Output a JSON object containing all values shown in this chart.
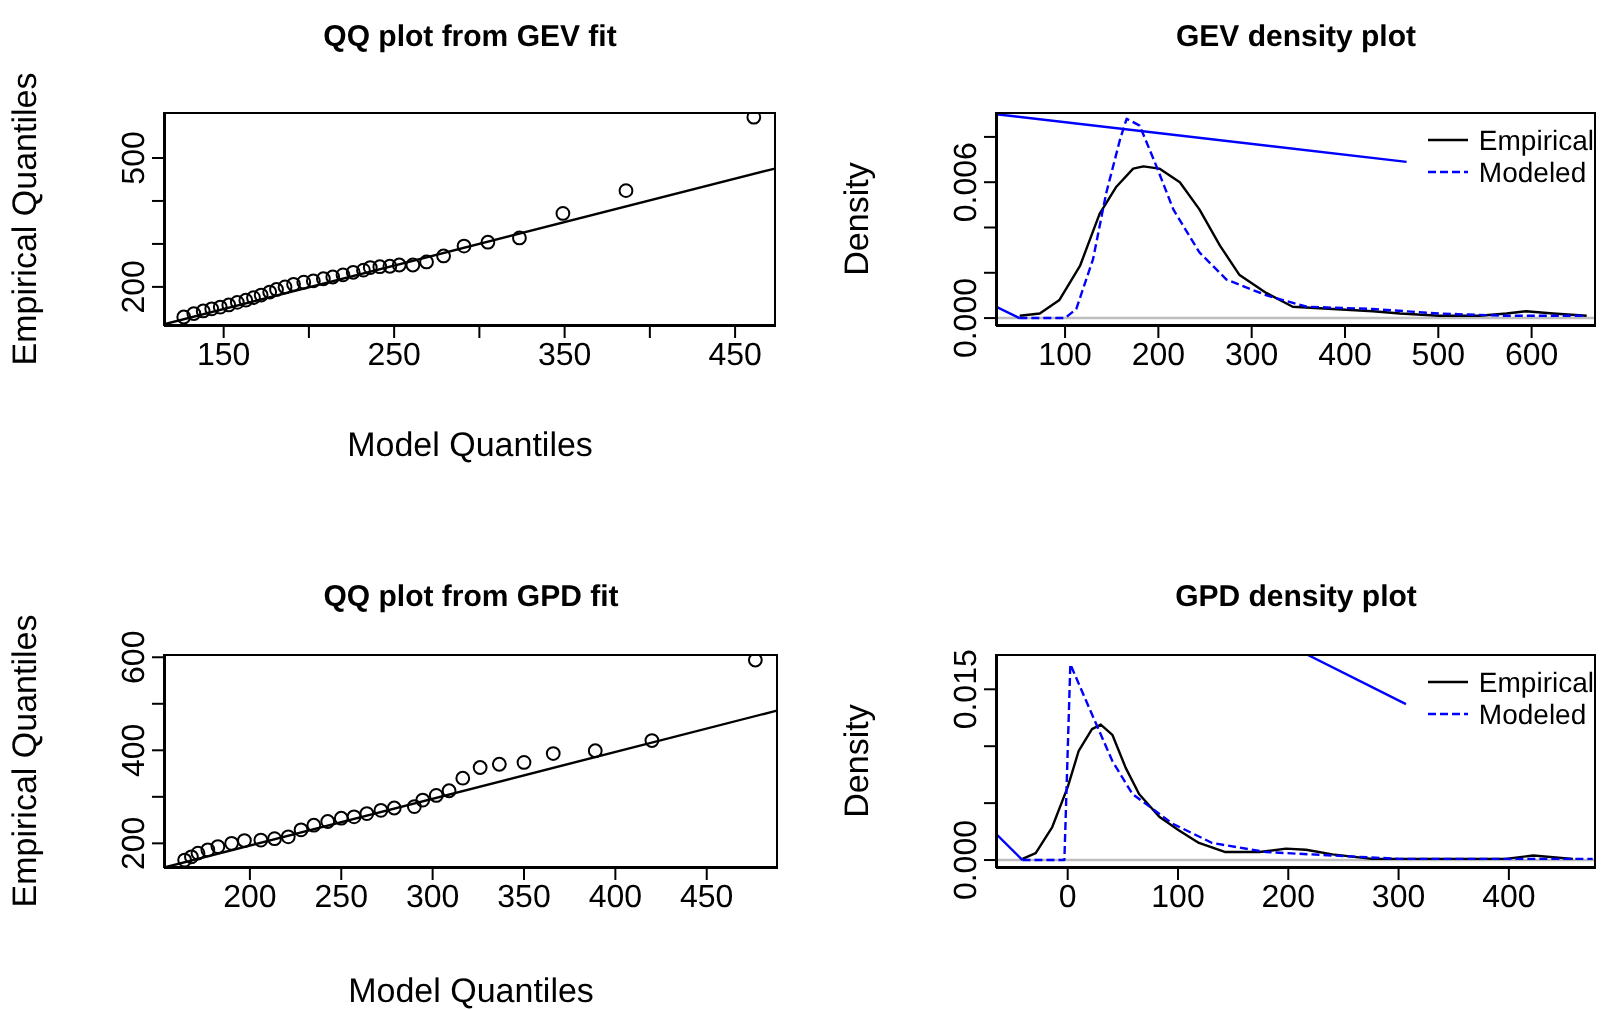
{
  "chart_data": [
    {
      "type": "scatter",
      "title": "QQ plot from GEV fit",
      "xlabel": "Model Quantiles",
      "ylabel": "Empirical Quantiles",
      "xlim": [
        115,
        474
      ],
      "ylim": [
        109,
        607
      ],
      "xticks": [
        150,
        {
          "value": 200,
          "label": null
        },
        250,
        {
          "value": 300,
          "label": null
        },
        350,
        {
          "value": 400,
          "label": null
        },
        450
      ],
      "yticks": [
        200,
        {
          "value": 300,
          "label": null
        },
        {
          "value": 400,
          "label": null
        },
        500
      ],
      "series": [
        {
          "marker": "circle",
          "color": "#000000",
          "x": [
            126.6,
            132.5,
            138,
            143,
            148,
            153,
            158,
            163,
            167.5,
            172,
            177,
            181,
            186,
            191,
            197,
            202.6,
            208.5,
            214,
            220,
            226,
            232,
            236,
            241.6,
            247.5,
            253,
            261,
            269,
            279,
            291,
            305,
            323.5,
            349,
            386,
            461
          ],
          "values": [
            130,
            138,
            144,
            149,
            153,
            158,
            164,
            169,
            175,
            181,
            188,
            194,
            200,
            206,
            211,
            214,
            219,
            223,
            228,
            234,
            239,
            245,
            247,
            248,
            251,
            251,
            258,
            272,
            295,
            304,
            314,
            371,
            424,
            595
          ]
        },
        {
          "type": "line",
          "color": "#000000",
          "x": [
            115,
            474
          ],
          "values": [
            113,
            476
          ]
        }
      ]
    },
    {
      "type": "line",
      "title": "GEV density plot",
      "ylabel": "Density",
      "legend": "top right",
      "xlim": [
        26,
        669
      ],
      "ylim": [
        -0.00035,
        0.0091
      ],
      "xticks": [
        100,
        200,
        300,
        400,
        500,
        600
      ],
      "yticks": [
        {
          "value": 0,
          "label": "0.000"
        },
        {
          "value": 0.002,
          "label": null
        },
        {
          "value": 0.004,
          "label": null
        },
        {
          "value": 0.006,
          "label": "0.006"
        },
        {
          "value": 0.008,
          "label": null
        }
      ],
      "ref_lines": [
        {
          "axis": "y",
          "value": 0,
          "color": "#bebebe"
        }
      ],
      "series": [
        {
          "name": "Empirical",
          "color": "#000000",
          "line_style": "solid",
          "x": [
            51.4,
            72.9,
            94,
            116,
            137,
            155,
            173,
            184,
            201,
            223,
            244,
            266,
            287,
            316,
            344,
            387,
            430,
            459,
            501,
            544,
            573,
            594,
            623,
            659
          ],
          "values": [
            0.0001,
            0.0002,
            0.0008,
            0.0023,
            0.0046,
            0.0058,
            0.0066,
            0.0067,
            0.0066,
            0.006,
            0.0048,
            0.0032,
            0.0019,
            0.0011,
            0.0005,
            0.0004,
            0.0003,
            0.0002,
            0.0001,
            0.0001,
            0.0002,
            0.0003,
            0.0002,
            0.0001
          ]
        },
        {
          "name": "Modeled",
          "color": "#0000ff",
          "line_style": "dashed",
          "x": [
            51,
            100,
            112,
            130,
            144,
            159,
            166,
            180,
            198,
            216,
            244,
            273,
            316,
            359,
            430,
            501,
            573,
            659
          ],
          "values": [
            0,
            0,
            0.0004,
            0.0026,
            0.0055,
            0.0079,
            0.0088,
            0.0085,
            0.0067,
            0.0048,
            0.0029,
            0.0017,
            0.001,
            0.0005,
            0.0004,
            0.0002,
            0.0001,
            0.0001
          ]
        },
        {
          "color": "#0000ff",
          "line_style": "solid",
          "x": [
            26.4,
            51
          ],
          "values": [
            0.0005,
            0
          ]
        },
        {
          "color": "#0000ff",
          "line_style": "solid",
          "x": [
            26.4,
            466
          ],
          "values": [
            0.009,
            0.0069
          ]
        }
      ]
    },
    {
      "type": "scatter",
      "title": "QQ plot from GPD fit",
      "xlabel": "Model Quantiles",
      "ylabel": "Empirical Quantiles",
      "xlim": [
        153,
        489
      ],
      "ylim": [
        147,
        607
      ],
      "xticks": [
        200,
        250,
        300,
        350,
        400,
        450
      ],
      "yticks": [
        200,
        {
          "value": 300,
          "label": null
        },
        400,
        {
          "value": 500,
          "label": null
        },
        600
      ],
      "series": [
        {
          "marker": "circle",
          "color": "#000000",
          "x": [
            164.3,
            168,
            171.6,
            177,
            182.5,
            190,
            197,
            206,
            213.5,
            221,
            228,
            235,
            242.6,
            250,
            257,
            264,
            271.7,
            279,
            290,
            294.6,
            302,
            309,
            316.5,
            326,
            336.5,
            350,
            366,
            389,
            420,
            476.6
          ],
          "values": [
            164,
            171,
            179,
            186,
            193,
            200,
            206,
            207,
            210,
            214,
            229,
            239,
            247,
            254,
            257,
            264,
            271,
            276,
            279,
            293,
            303,
            313,
            340,
            363,
            370,
            374,
            393,
            399,
            421,
            594
          ]
        },
        {
          "type": "line",
          "color": "#000000",
          "x": [
            153,
            489
          ],
          "values": [
            148,
            486
          ]
        }
      ]
    },
    {
      "type": "line",
      "title": "GPD density plot",
      "ylabel": "Density",
      "legend": "top right",
      "xlim": [
        -65,
        479
      ],
      "ylim": [
        -0.0007,
        0.0181
      ],
      "xticks": [
        0,
        100,
        200,
        300,
        400
      ],
      "yticks": [
        {
          "value": 0,
          "label": "0.000"
        },
        {
          "value": 0.005,
          "label": null
        },
        {
          "value": 0.01,
          "label": null
        },
        {
          "value": 0.015,
          "label": "0.015"
        }
      ],
      "ref_lines": [
        {
          "axis": "y",
          "value": 0,
          "color": "#bebebe"
        }
      ],
      "series": [
        {
          "name": "Empirical",
          "color": "#000000",
          "line_style": "solid",
          "x": [
            -41,
            -29,
            -14,
            0,
            10,
            22,
            30,
            40.5,
            52.6,
            64.7,
            83,
            101,
            119,
            143,
            174,
            198,
            216,
            240,
            276,
            337,
            397,
            422,
            458
          ],
          "values": [
            0.0001,
            0.0006,
            0.0029,
            0.0064,
            0.0096,
            0.0115,
            0.0119,
            0.011,
            0.0081,
            0.0058,
            0.0038,
            0.0026,
            0.0015,
            0.0007,
            0.0007,
            0.001,
            0.0009,
            0.0005,
            0.0001,
            0.0001,
            0.0001,
            0.0004,
            0.0001
          ]
        },
        {
          "name": "Modeled",
          "color": "#0000ff",
          "line_style": "dashed",
          "x": [
            -41,
            -3,
            2.4,
            22,
            40.5,
            58.7,
            95,
            131,
            180,
            240,
            301,
            361,
            476
          ],
          "values": [
            0,
            0,
            0.0172,
            0.0128,
            0.0087,
            0.0058,
            0.0032,
            0.0015,
            0.0007,
            0.0004,
            0.0001,
            0.0001,
            0.0001
          ]
        },
        {
          "color": "#0000ff",
          "line_style": "solid",
          "x": [
            -65,
            -41
          ],
          "values": [
            0.0023,
            0
          ]
        },
        {
          "color": "#0000ff",
          "line_style": "solid",
          "x": [
            216,
            306.7
          ],
          "values": [
            0.0181,
            0.0137
          ]
        }
      ]
    }
  ]
}
